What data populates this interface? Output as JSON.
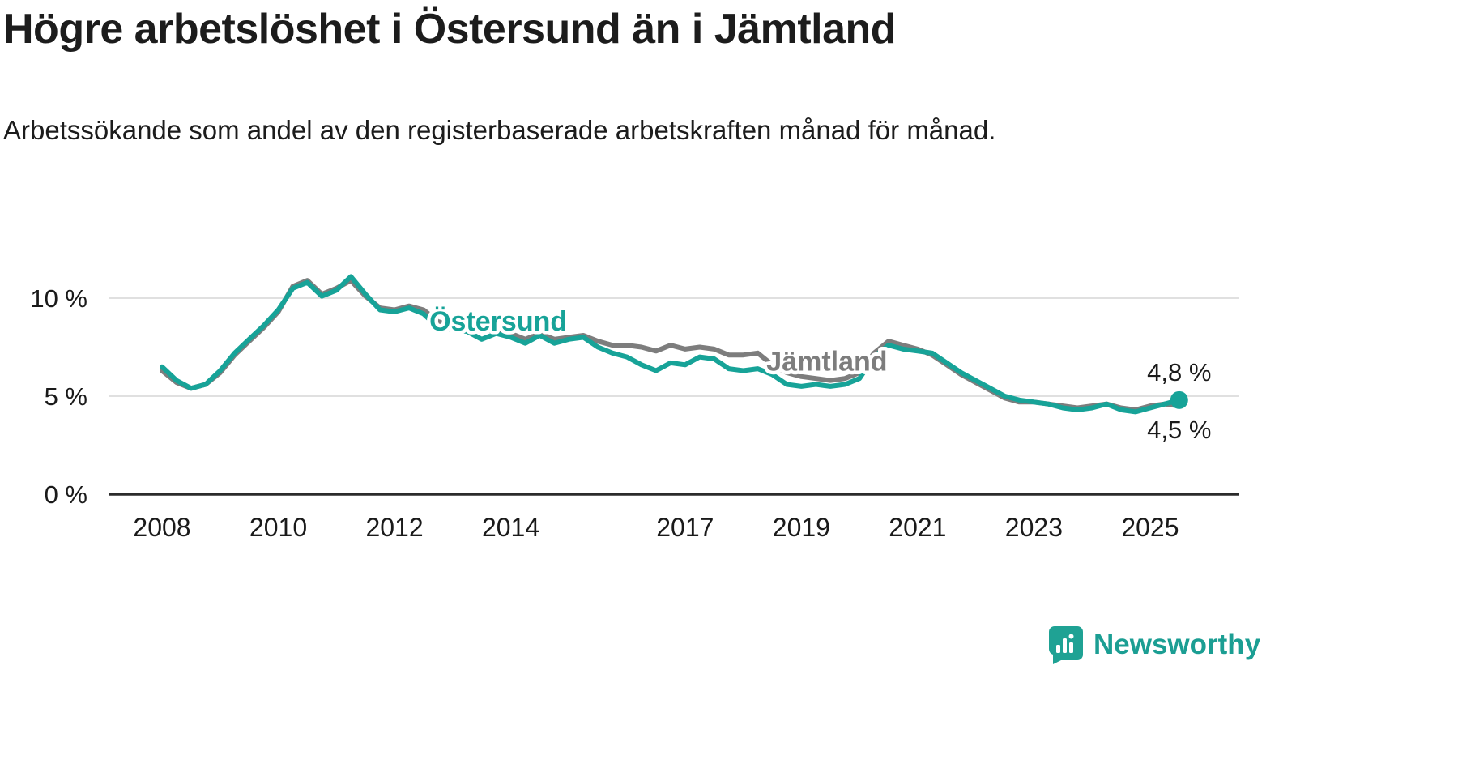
{
  "header": {
    "brand": "Newsworthy"
  },
  "chart_data": {
    "type": "line",
    "title": "Högre arbetslöshet i Östersund än i Jämtland",
    "subtitle": "Arbetssökande som andel av den registerbaserade arbetskraften månad för månad.",
    "xlabel": "",
    "ylabel": "",
    "ylim": [
      0,
      11.5
    ],
    "grid": "horizontal",
    "legend": "inline",
    "yticks": [
      {
        "value": 0,
        "label": "0 %"
      },
      {
        "value": 5,
        "label": "5 %"
      },
      {
        "value": 10,
        "label": "10 %"
      }
    ],
    "xticks": [
      {
        "value": 2008,
        "label": "2008"
      },
      {
        "value": 2010,
        "label": "2010"
      },
      {
        "value": 2012,
        "label": "2012"
      },
      {
        "value": 2014,
        "label": "2014"
      },
      {
        "value": 2017,
        "label": "2017"
      },
      {
        "value": 2019,
        "label": "2019"
      },
      {
        "value": 2021,
        "label": "2021"
      },
      {
        "value": 2023,
        "label": "2023"
      },
      {
        "value": 2025,
        "label": "2025"
      }
    ],
    "x": [
      2008.0,
      2008.25,
      2008.5,
      2008.75,
      2009.0,
      2009.25,
      2009.5,
      2009.75,
      2010.0,
      2010.25,
      2010.5,
      2010.75,
      2011.0,
      2011.25,
      2011.5,
      2011.75,
      2012.0,
      2012.25,
      2012.5,
      2012.75,
      2013.0,
      2013.25,
      2013.5,
      2013.75,
      2014.0,
      2014.25,
      2014.5,
      2014.75,
      2015.0,
      2015.25,
      2015.5,
      2015.75,
      2016.0,
      2016.25,
      2016.5,
      2016.75,
      2017.0,
      2017.25,
      2017.5,
      2017.75,
      2018.0,
      2018.25,
      2018.5,
      2018.75,
      2019.0,
      2019.25,
      2019.5,
      2019.75,
      2020.0,
      2020.25,
      2020.5,
      2020.75,
      2021.0,
      2021.25,
      2021.5,
      2021.75,
      2022.0,
      2022.25,
      2022.5,
      2022.75,
      2023.0,
      2023.25,
      2023.5,
      2023.75,
      2024.0,
      2024.25,
      2024.5,
      2024.75,
      2025.0,
      2025.25,
      2025.5
    ],
    "series": [
      {
        "name": "Östersund",
        "color": "#17a398",
        "end_label": "4,8 %",
        "end_label_position": "above",
        "end_dot": true,
        "values": [
          6.5,
          5.8,
          5.4,
          5.6,
          6.3,
          7.2,
          7.9,
          8.6,
          9.4,
          10.5,
          10.8,
          10.1,
          10.4,
          11.1,
          10.2,
          9.4,
          9.3,
          9.5,
          9.2,
          8.5,
          8.4,
          8.3,
          7.9,
          8.2,
          8.0,
          7.7,
          8.1,
          7.7,
          7.9,
          8.0,
          7.5,
          7.2,
          7.0,
          6.6,
          6.3,
          6.7,
          6.6,
          7.0,
          6.9,
          6.4,
          6.3,
          6.4,
          6.1,
          5.6,
          5.5,
          5.6,
          5.5,
          5.6,
          5.9,
          7.0,
          7.6,
          7.4,
          7.3,
          7.2,
          6.7,
          6.2,
          5.8,
          5.4,
          5.0,
          4.8,
          4.7,
          4.6,
          4.4,
          4.3,
          4.4,
          4.6,
          4.3,
          4.2,
          4.4,
          4.6,
          4.8
        ]
      },
      {
        "name": "Jämtland",
        "color": "#7d7d7d",
        "end_label": "4,5 %",
        "end_label_position": "below",
        "end_dot": false,
        "values": [
          6.3,
          5.7,
          5.4,
          5.6,
          6.2,
          7.1,
          7.8,
          8.5,
          9.3,
          10.6,
          10.9,
          10.2,
          10.5,
          10.9,
          10.1,
          9.5,
          9.4,
          9.6,
          9.4,
          8.8,
          8.6,
          8.5,
          8.3,
          8.4,
          8.2,
          7.9,
          8.2,
          7.9,
          8.0,
          8.1,
          7.8,
          7.6,
          7.6,
          7.5,
          7.3,
          7.6,
          7.4,
          7.5,
          7.4,
          7.1,
          7.1,
          7.2,
          6.6,
          6.2,
          6.0,
          5.9,
          5.8,
          5.9,
          6.2,
          7.2,
          7.8,
          7.6,
          7.4,
          7.1,
          6.6,
          6.1,
          5.7,
          5.3,
          4.9,
          4.7,
          4.7,
          4.6,
          4.5,
          4.4,
          4.5,
          4.6,
          4.4,
          4.3,
          4.5,
          4.6,
          4.5
        ]
      }
    ],
    "series_labels": [
      {
        "text": "Östersund",
        "x": 2012.6,
        "y": 8.35,
        "color": "#17a398"
      },
      {
        "text": "Jämtland",
        "x": 2018.4,
        "y": 6.3,
        "color": "#7d7d7d"
      }
    ]
  },
  "colors": {
    "ostersund": "#17a398",
    "jamtland": "#7d7d7d",
    "axis": "#2b2b2b",
    "gridline": "#e0e0e0",
    "text": "#1a1a1a",
    "brand_teal": "#1b9e93"
  }
}
